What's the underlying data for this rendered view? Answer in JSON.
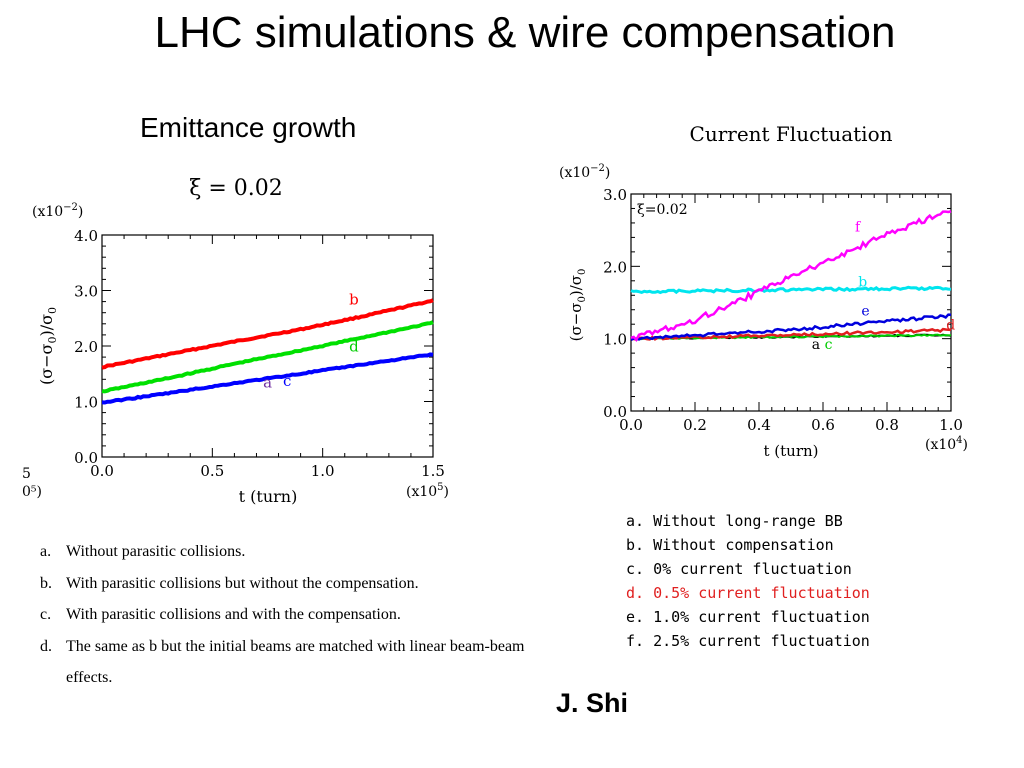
{
  "slide": {
    "title": "LHC simulations & wire compensation",
    "subtitle": "Emittance growth",
    "author": "J. Shi"
  },
  "chart_data": [
    {
      "type": "line",
      "title": "ξ = 0.02",
      "xlabel": "t (turn)",
      "ylabel": "(σ−σ0)/σ0",
      "x_multiplier": "(x10^5)",
      "y_multiplier": "(x10^-2)",
      "xlim": [
        0.0,
        1.5
      ],
      "ylim": [
        0.0,
        4.0
      ],
      "x_ticks": [
        "0.0",
        "0.5",
        "1.0",
        "1.5"
      ],
      "y_ticks": [
        "0.0",
        "1.0",
        "2.0",
        "3.0",
        "4.0"
      ],
      "clipped_left_text": [
        "5",
        "0⁵)"
      ],
      "series": [
        {
          "name": "b",
          "color": "#ff0000",
          "x": [
            0.0,
            0.3,
            0.6,
            0.9,
            1.2,
            1.5
          ],
          "y": [
            1.62,
            1.85,
            2.08,
            2.3,
            2.55,
            2.82
          ]
        },
        {
          "name": "d",
          "color": "#00e000",
          "x": [
            0.0,
            0.3,
            0.6,
            0.9,
            1.2,
            1.5
          ],
          "y": [
            1.18,
            1.42,
            1.68,
            1.92,
            2.17,
            2.42
          ]
        },
        {
          "name": "a c",
          "color": "#0000ff",
          "x": [
            0.0,
            0.3,
            0.6,
            0.9,
            1.2,
            1.5
          ],
          "y": [
            0.98,
            1.15,
            1.33,
            1.5,
            1.68,
            1.85
          ]
        }
      ],
      "annotations": [
        {
          "text": "b",
          "color": "#ff0000",
          "x": 1.12,
          "y": 2.75
        },
        {
          "text": "d",
          "color": "#00cc00",
          "x": 1.12,
          "y": 1.9
        },
        {
          "text": "a",
          "color": "#7030a0",
          "x": 0.73,
          "y": 1.25
        },
        {
          "text": "c",
          "color": "#0000ff",
          "x": 0.82,
          "y": 1.28
        }
      ],
      "legend": [
        {
          "label": "a.",
          "text": "Without parasitic collisions."
        },
        {
          "label": "b.",
          "text": "With parasitic collisions but without the compensation."
        },
        {
          "label": "c.",
          "text": "With parasitic collisions and with the compensation."
        },
        {
          "label": "d.",
          "text": "The same as b but the initial beams are matched with linear beam-beam effects."
        }
      ]
    },
    {
      "type": "line",
      "title": "Current Fluctuation",
      "xlabel": "t (turn)",
      "ylabel": "(σ−σ0)/σ0",
      "x_multiplier": "(x10^4)",
      "y_multiplier": "(x10^-2)",
      "xlim": [
        0.0,
        1.0
      ],
      "ylim": [
        0.0,
        3.0
      ],
      "x_ticks": [
        "0.0",
        "0.2",
        "0.4",
        "0.6",
        "0.8",
        "1.0"
      ],
      "y_ticks": [
        "0.0",
        "1.0",
        "2.0",
        "3.0"
      ],
      "inner_label": "ξ=0.02",
      "series": [
        {
          "name": "a",
          "color": "#000000",
          "x": [
            0.0,
            1.0
          ],
          "y": [
            1.0,
            1.05
          ]
        },
        {
          "name": "c",
          "color": "#00cc00",
          "x": [
            0.0,
            1.0
          ],
          "y": [
            1.0,
            1.05
          ]
        },
        {
          "name": "d",
          "color": "#e02020",
          "x": [
            0.0,
            0.5,
            1.0
          ],
          "y": [
            1.0,
            1.05,
            1.12
          ]
        },
        {
          "name": "e",
          "color": "#0000dd",
          "x": [
            0.0,
            0.5,
            1.0
          ],
          "y": [
            1.0,
            1.12,
            1.32
          ]
        },
        {
          "name": "b",
          "color": "#00e5ee",
          "x": [
            0.0,
            1.0
          ],
          "y": [
            1.65,
            1.7
          ]
        },
        {
          "name": "f",
          "color": "#ff00ff",
          "x": [
            0.0,
            0.2,
            0.4,
            0.6,
            0.8,
            1.0
          ],
          "y": [
            1.0,
            1.25,
            1.65,
            2.05,
            2.45,
            2.78
          ]
        }
      ],
      "annotations": [
        {
          "text": "f",
          "color": "#ff00ff",
          "x": 0.7,
          "y": 2.48
        },
        {
          "text": "b",
          "color": "#00e5ee",
          "x": 0.71,
          "y": 1.72
        },
        {
          "text": "e",
          "color": "#0000dd",
          "x": 0.72,
          "y": 1.32
        },
        {
          "text": "d",
          "color": "#e02020",
          "x": 0.985,
          "y": 1.13
        },
        {
          "text": "a",
          "color": "#000000",
          "x": 0.565,
          "y": 0.86
        },
        {
          "text": "c",
          "color": "#00cc00",
          "x": 0.605,
          "y": 0.86
        }
      ],
      "legend": [
        {
          "label": "a.",
          "text": "Without long-range BB",
          "color": "#000000"
        },
        {
          "label": "b.",
          "text": "Without compensation",
          "color": "#000000"
        },
        {
          "label": "c.",
          "text": "0% current fluctuation",
          "color": "#000000"
        },
        {
          "label": "d.",
          "text": "0.5% current fluctuation",
          "color": "#e02020"
        },
        {
          "label": "e.",
          "text": "1.0% current fluctuation",
          "color": "#000000"
        },
        {
          "label": "f.",
          "text": "2.5% current fluctuation",
          "color": "#000000"
        }
      ]
    }
  ]
}
